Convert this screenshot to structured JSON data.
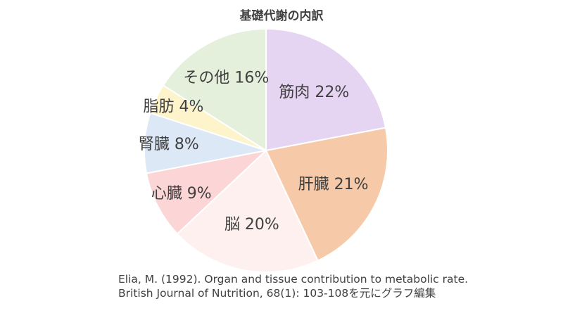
{
  "chart_data": {
    "type": "pie",
    "title": "基礎代謝の内訳",
    "slices": [
      {
        "name": "筋肉",
        "value": 22,
        "display": "22%",
        "color": "#e5d4f2"
      },
      {
        "name": "肝臓",
        "value": 21,
        "display": "21%",
        "color": "#f6c9a9"
      },
      {
        "name": "脳",
        "value": 20,
        "display": "20%",
        "color": "#fdf0ef"
      },
      {
        "name": "心臓",
        "value": 9,
        "display": "9%",
        "color": "#fcd5d6"
      },
      {
        "name": "腎臓",
        "value": 8,
        "display": "8%",
        "color": "#dde8f6"
      },
      {
        "name": "脂肪",
        "value": 4,
        "display": "4%",
        "color": "#fdf4cc"
      },
      {
        "name": "その他",
        "value": 16,
        "display": "16%",
        "color": "#e4f0db"
      }
    ],
    "start": "12 o'clock, clockwise",
    "legend": "none",
    "source": "Elia, M. (1992). Organ and tissue contribution to metabolic rate. British Journal of Nutrition, 68(1): 103-108を元にグラフ編集"
  }
}
